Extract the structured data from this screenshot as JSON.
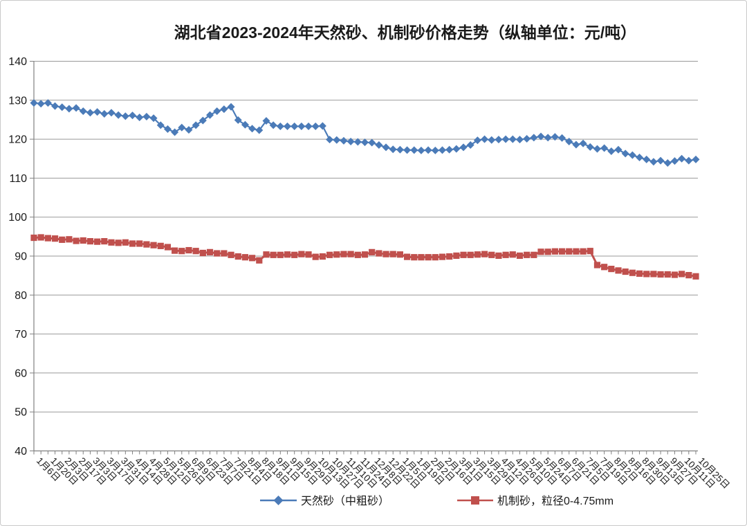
{
  "chart_data": {
    "type": "line",
    "title": "湖北省2023-2024年天然砂、机制砂价格走势（纵轴单位：元/吨）",
    "y_axis": {
      "min": 40,
      "max": 140,
      "step": 10,
      "unit": "元/吨",
      "tick_labels": [
        "140",
        "130",
        "120",
        "110",
        "100",
        "90",
        "80",
        "70",
        "60",
        "50",
        "40"
      ]
    },
    "x_axis": {
      "points_per_label": 2,
      "tick_labels": [
        "1月6日",
        "1月20日",
        "2月3日",
        "2月17日",
        "3月3日",
        "3月17日",
        "3月31日",
        "4月14日",
        "4月28日",
        "5月12日",
        "5月26日",
        "6月9日",
        "6月23日",
        "7月7日",
        "7月21日",
        "8月4日",
        "8月18日",
        "9月1日",
        "9月15日",
        "9月29日",
        "10月13日",
        "10月27日",
        "11月10日",
        "11月24日",
        "12月8日",
        "12月22日",
        "1月5日",
        "1月19日",
        "2月2日",
        "2月16日",
        "3月1日",
        "3月15日",
        "3月29日",
        "4月12日",
        "4月26日",
        "5月10日",
        "5月24日",
        "6月7日",
        "6月21日",
        "7月5日",
        "7月19日",
        "8月2日",
        "8月16日",
        "8月30日",
        "9月13日",
        "9月27日",
        "10月11日",
        "10月25日"
      ]
    },
    "series": [
      {
        "name": "天然砂（中粗砂）",
        "color": "#4b7bb8",
        "marker": "diamond",
        "values": [
          129.3,
          129.1,
          129.3,
          128.5,
          128.2,
          127.8,
          128.0,
          127.2,
          126.8,
          127.0,
          126.5,
          126.8,
          126.2,
          125.9,
          126.1,
          125.6,
          125.8,
          125.4,
          123.6,
          122.6,
          121.8,
          123.0,
          122.4,
          123.6,
          124.8,
          126.2,
          127.2,
          127.7,
          128.3,
          124.9,
          123.7,
          122.7,
          122.3,
          124.7,
          123.6,
          123.3,
          123.3,
          123.3,
          123.3,
          123.3,
          123.3,
          123.4,
          119.9,
          119.8,
          119.6,
          119.4,
          119.3,
          119.2,
          119.1,
          118.5,
          117.9,
          117.4,
          117.3,
          117.2,
          117.2,
          117.1,
          117.2,
          117.1,
          117.2,
          117.3,
          117.5,
          117.9,
          118.5,
          119.7,
          120.0,
          119.8,
          119.9,
          120.0,
          120.0,
          119.9,
          120.1,
          120.4,
          120.7,
          120.4,
          120.6,
          120.3,
          119.4,
          118.6,
          118.9,
          118.0,
          117.5,
          117.7,
          116.9,
          117.3,
          116.3,
          115.9,
          115.3,
          114.8,
          114.2,
          114.5,
          113.9,
          114.4,
          115.0,
          114.5,
          114.8
        ]
      },
      {
        "name": "机制砂，粒径0-4.75mm",
        "color": "#c0504d",
        "marker": "square",
        "values": [
          94.7,
          94.8,
          94.6,
          94.5,
          94.2,
          94.3,
          93.9,
          94.0,
          93.8,
          93.7,
          93.8,
          93.5,
          93.4,
          93.5,
          93.2,
          93.2,
          93.0,
          92.8,
          92.6,
          92.3,
          91.4,
          91.3,
          91.5,
          91.3,
          90.8,
          91.0,
          90.7,
          90.7,
          90.3,
          89.9,
          89.7,
          89.5,
          88.9,
          90.4,
          90.3,
          90.3,
          90.4,
          90.3,
          90.5,
          90.4,
          89.8,
          89.9,
          90.3,
          90.4,
          90.5,
          90.5,
          90.3,
          90.4,
          91.0,
          90.7,
          90.5,
          90.5,
          90.4,
          89.8,
          89.7,
          89.7,
          89.7,
          89.7,
          89.8,
          89.9,
          90.1,
          90.3,
          90.3,
          90.4,
          90.5,
          90.3,
          90.1,
          90.3,
          90.4,
          90.1,
          90.3,
          90.3,
          91.1,
          91.1,
          91.2,
          91.2,
          91.2,
          91.2,
          91.2,
          91.3,
          87.7,
          87.2,
          86.7,
          86.3,
          86.0,
          85.7,
          85.5,
          85.4,
          85.4,
          85.3,
          85.3,
          85.2,
          85.4,
          85.1,
          84.8
        ]
      }
    ],
    "legend_position": "bottom",
    "grid": "horizontal"
  },
  "colors": {
    "grid": "#999999",
    "axis": "#808080",
    "text": "#1a1a1a",
    "background": "#ffffff",
    "border": "#c9c9c9"
  }
}
